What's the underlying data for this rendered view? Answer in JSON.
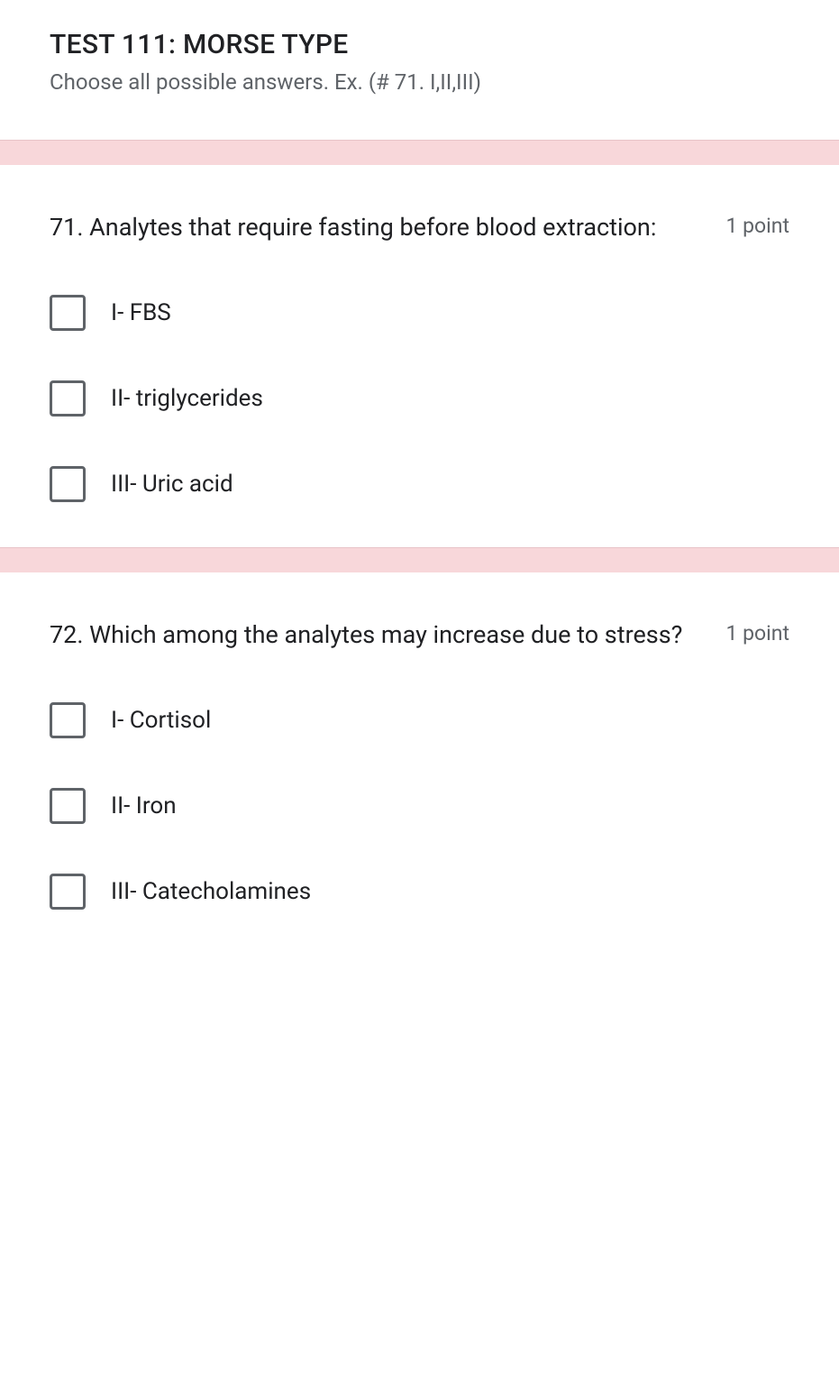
{
  "header": {
    "title": "TEST 111: MORSE TYPE",
    "subtitle": "Choose all possible answers. Ex. (# 71.  I,II,III)"
  },
  "questions": [
    {
      "text": "71. Analytes that require fasting before blood extraction:",
      "points": "1 point",
      "options": [
        "I- FBS",
        "II- triglycerides",
        "III- Uric acid"
      ]
    },
    {
      "text": "72. Which among the analytes may increase due to stress?",
      "points": "1 point",
      "options": [
        "I- Cortisol",
        "II- Iron",
        "III- Catecholamines"
      ]
    }
  ],
  "colors": {
    "background": "#ffffff",
    "divider": "#f8d7da",
    "divider_border": "#e8c4c8",
    "text_primary": "#202124",
    "text_secondary": "#5f6368",
    "checkbox_border": "#5f6368"
  }
}
